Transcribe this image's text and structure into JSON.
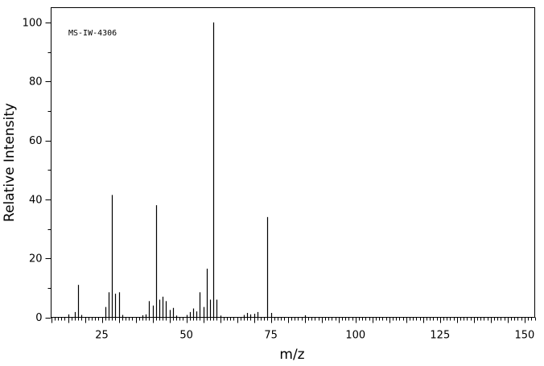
{
  "chart_data": {
    "type": "bar",
    "title": "",
    "annotation": "MS-IW-4306",
    "xlabel": "m/z",
    "ylabel": "Relative Intensity",
    "xlim": [
      10,
      153
    ],
    "ylim": [
      0,
      105
    ],
    "x_ticks": [
      25,
      50,
      75,
      100,
      125,
      150
    ],
    "y_ticks": [
      0,
      20,
      40,
      60,
      80,
      100
    ],
    "grid": false,
    "peaks": [
      {
        "mz": 15,
        "intensity": 1.0
      },
      {
        "mz": 17,
        "intensity": 1.8
      },
      {
        "mz": 18,
        "intensity": 11.0
      },
      {
        "mz": 19,
        "intensity": 0.8
      },
      {
        "mz": 26,
        "intensity": 3.5
      },
      {
        "mz": 27,
        "intensity": 8.5
      },
      {
        "mz": 28,
        "intensity": 41.5
      },
      {
        "mz": 29,
        "intensity": 8.0
      },
      {
        "mz": 30,
        "intensity": 8.5
      },
      {
        "mz": 31,
        "intensity": 0.8
      },
      {
        "mz": 37,
        "intensity": 0.7
      },
      {
        "mz": 38,
        "intensity": 1.0
      },
      {
        "mz": 39,
        "intensity": 5.5
      },
      {
        "mz": 40,
        "intensity": 4.0
      },
      {
        "mz": 41,
        "intensity": 38.0
      },
      {
        "mz": 42,
        "intensity": 6.0
      },
      {
        "mz": 43,
        "intensity": 7.0
      },
      {
        "mz": 44,
        "intensity": 5.5
      },
      {
        "mz": 45,
        "intensity": 2.5
      },
      {
        "mz": 46,
        "intensity": 3.2
      },
      {
        "mz": 47,
        "intensity": 0.6
      },
      {
        "mz": 50,
        "intensity": 0.8
      },
      {
        "mz": 51,
        "intensity": 1.8
      },
      {
        "mz": 52,
        "intensity": 3.0
      },
      {
        "mz": 53,
        "intensity": 2.0
      },
      {
        "mz": 54,
        "intensity": 8.5
      },
      {
        "mz": 55,
        "intensity": 3.5
      },
      {
        "mz": 56,
        "intensity": 16.5
      },
      {
        "mz": 57,
        "intensity": 6.0
      },
      {
        "mz": 58,
        "intensity": 100
      },
      {
        "mz": 59,
        "intensity": 6.0
      },
      {
        "mz": 60,
        "intensity": 0.6
      },
      {
        "mz": 67,
        "intensity": 0.8
      },
      {
        "mz": 68,
        "intensity": 1.5
      },
      {
        "mz": 69,
        "intensity": 1.0
      },
      {
        "mz": 70,
        "intensity": 1.2
      },
      {
        "mz": 71,
        "intensity": 1.8
      },
      {
        "mz": 74,
        "intensity": 34.0
      },
      {
        "mz": 75,
        "intensity": 1.5
      },
      {
        "mz": 85,
        "intensity": 0.7
      }
    ]
  }
}
